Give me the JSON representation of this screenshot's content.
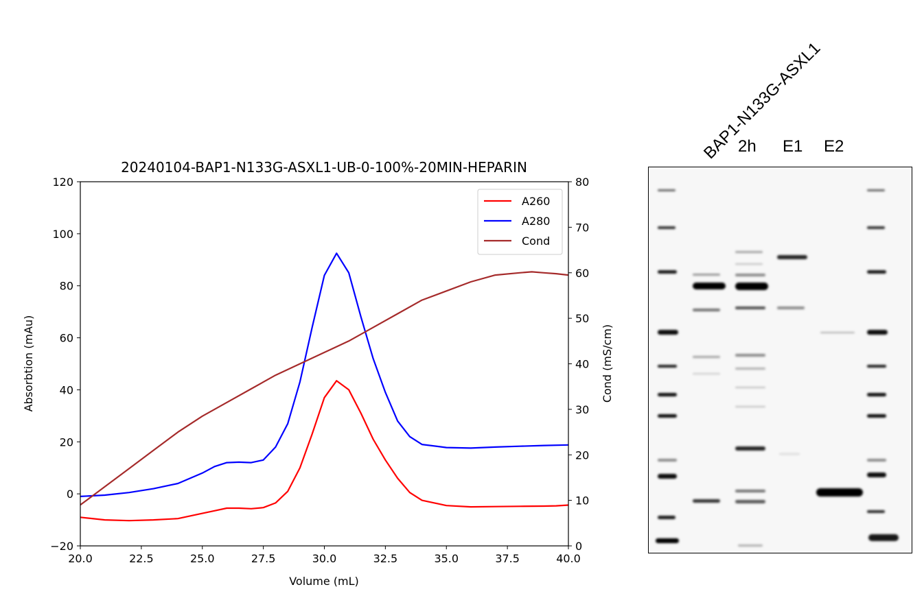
{
  "chart_data": [
    {
      "type": "line",
      "title": "20240104-BAP1-N133G-ASXL1-UB-0-100%-20MIN-HEPARIN",
      "xlabel": "Volume (mL)",
      "ylabel": "Absorbtion (mAu)",
      "y2label": "Cond (mS/cm)",
      "xlim": [
        20.0,
        40.0
      ],
      "ylim": [
        -20,
        120
      ],
      "y2lim": [
        0,
        80
      ],
      "xticks": [
        "20.0",
        "22.5",
        "25.0",
        "27.5",
        "30.0",
        "32.5",
        "35.0",
        "37.5",
        "40.0"
      ],
      "yticks": [
        "−20",
        "0",
        "20",
        "40",
        "60",
        "80",
        "100",
        "120"
      ],
      "y2ticks": [
        "0",
        "10",
        "20",
        "30",
        "40",
        "50",
        "60",
        "70",
        "80"
      ],
      "legend_position": "top-right",
      "grid": false,
      "series": [
        {
          "name": "A260",
          "color": "#ff0000",
          "axis": "left",
          "x": [
            20,
            21,
            22,
            23,
            24,
            25,
            25.5,
            26,
            26.5,
            27,
            27.5,
            28,
            28.5,
            29,
            29.5,
            30,
            30.5,
            31,
            31.5,
            32,
            32.5,
            33,
            33.5,
            34,
            35,
            36,
            37,
            38,
            39,
            39.5,
            40
          ],
          "values": [
            -9,
            -10,
            -10.3,
            -10,
            -9.5,
            -7.5,
            -6.5,
            -5.5,
            -5.5,
            -5.7,
            -5.3,
            -3.5,
            1,
            10,
            23,
            37,
            43.5,
            40,
            31,
            21,
            13,
            6,
            0.5,
            -2.5,
            -4.5,
            -5,
            -4.9,
            -4.8,
            -4.7,
            -4.6,
            -4.3
          ]
        },
        {
          "name": "A280",
          "color": "#0000ff",
          "axis": "left",
          "x": [
            20,
            21,
            22,
            23,
            24,
            25,
            25.5,
            26,
            26.5,
            27,
            27.5,
            28,
            28.5,
            29,
            29.5,
            30,
            30.5,
            31,
            31.5,
            32,
            32.5,
            33,
            33.5,
            34,
            35,
            36,
            37,
            38,
            39,
            40
          ],
          "values": [
            -1,
            -0.5,
            0.5,
            2,
            4,
            8,
            10.5,
            12,
            12.2,
            12,
            13,
            18,
            27,
            43,
            64,
            84,
            92.5,
            85,
            68,
            52,
            39,
            28,
            22,
            19,
            17.8,
            17.6,
            18,
            18.3,
            18.6,
            18.8
          ]
        },
        {
          "name": "Cond",
          "color": "#a52a2a",
          "axis": "right",
          "x": [
            20,
            21,
            22,
            23,
            24,
            25,
            26,
            27,
            28,
            29,
            30,
            31,
            32,
            33,
            34,
            35,
            36,
            37,
            38,
            38.5,
            39,
            39.5,
            40
          ],
          "values": [
            9,
            13,
            17,
            21,
            25,
            28.5,
            31.5,
            34.5,
            37.5,
            40,
            42.5,
            45,
            48,
            51,
            54,
            56,
            58,
            59.5,
            60,
            60.2,
            60,
            59.8,
            59.5
          ]
        }
      ]
    },
    {
      "type": "gel",
      "title": "BAP1-N133G-ASXL1",
      "lanes": [
        "2h",
        "E1",
        "E2"
      ]
    }
  ]
}
